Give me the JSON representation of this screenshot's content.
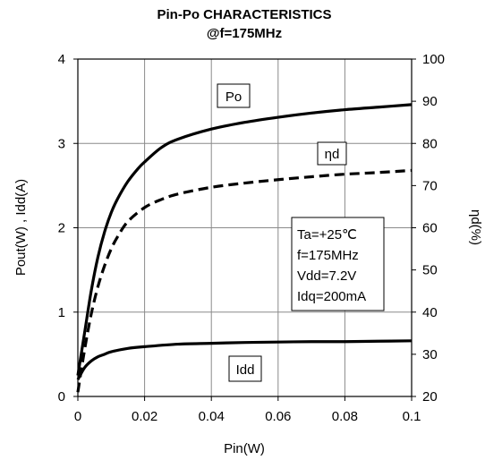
{
  "chart_data": {
    "type": "line",
    "title": [
      "Pin-Po CHARACTERISTICS",
      "@f=175MHz"
    ],
    "xlabel": "Pin(W)",
    "ylabel_left": "Pout(W) , Idd(A)",
    "ylabel_right": "ηd(%)",
    "xlim": [
      0,
      0.1
    ],
    "ylim_left": [
      0,
      4
    ],
    "ylim_right": [
      20,
      100
    ],
    "x_ticks": [
      "0",
      "0.02",
      "0.04",
      "0.06",
      "0.08",
      "0.1"
    ],
    "y_left_ticks": [
      "0",
      "1",
      "2",
      "3",
      "4"
    ],
    "y_right_ticks": [
      "20",
      "30",
      "40",
      "50",
      "60",
      "70",
      "80",
      "90",
      "100"
    ],
    "grid": true,
    "series": [
      {
        "name": "Po",
        "axis": "left",
        "style": "solid",
        "x": [
          0,
          0.002,
          0.004,
          0.006,
          0.008,
          0.01,
          0.012,
          0.015,
          0.018,
          0.02,
          0.025,
          0.03,
          0.04,
          0.05,
          0.06,
          0.07,
          0.08,
          0.09,
          0.1
        ],
        "y": [
          0.25,
          0.75,
          1.25,
          1.65,
          1.95,
          2.18,
          2.35,
          2.55,
          2.7,
          2.78,
          2.95,
          3.05,
          3.17,
          3.25,
          3.31,
          3.36,
          3.4,
          3.43,
          3.46
        ]
      },
      {
        "name": "ηd",
        "axis": "right",
        "style": "dashed",
        "x": [
          0,
          0.002,
          0.004,
          0.006,
          0.008,
          0.01,
          0.012,
          0.015,
          0.02,
          0.025,
          0.03,
          0.04,
          0.05,
          0.06,
          0.07,
          0.08,
          0.09,
          0.1
        ],
        "y": [
          21,
          31,
          39.5,
          46,
          51,
          55,
          58,
          61.5,
          64.8,
          66.7,
          68,
          69.6,
          70.6,
          71.4,
          72.1,
          72.7,
          73.1,
          73.6
        ]
      },
      {
        "name": "Idd",
        "axis": "left",
        "style": "solid",
        "x": [
          0,
          0.002,
          0.004,
          0.006,
          0.008,
          0.01,
          0.015,
          0.02,
          0.03,
          0.04,
          0.05,
          0.06,
          0.07,
          0.08,
          0.09,
          0.1
        ],
        "y": [
          0.2,
          0.34,
          0.42,
          0.47,
          0.5,
          0.53,
          0.57,
          0.59,
          0.62,
          0.63,
          0.64,
          0.645,
          0.65,
          0.65,
          0.655,
          0.66
        ]
      }
    ],
    "annotations": {
      "po_label": "Po",
      "eta_label": "ηd",
      "idd_label": "Idd",
      "conditions": [
        "Ta=+25℃",
        "f=175MHz",
        "Vdd=7.2V",
        "Idq=200mA"
      ]
    }
  }
}
